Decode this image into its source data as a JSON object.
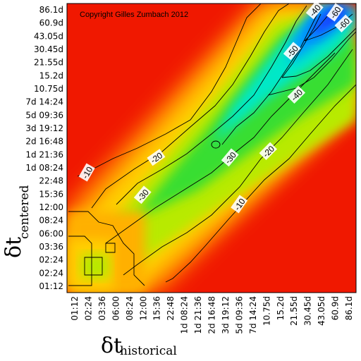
{
  "chart_data": {
    "type": "heatmap",
    "copyright": "Copyright Gilles Zumbach 2012",
    "xlabel_main": "δt",
    "xlabel_sub": "historical",
    "ylabel_main": "δt",
    "ylabel_sub": "centered",
    "x_ticks": [
      "01:12",
      "02:24",
      "03:36",
      "06:00",
      "08:24",
      "12:00",
      "15:36",
      "22:48",
      "1d 08:24",
      "1d 21:36",
      "2d 16:48",
      "3d 19:12",
      "5d 09:36",
      "7d 14:24",
      "10.75d",
      "15.2d",
      "21.55d",
      "30.45d",
      "43.05d",
      "60.9d",
      "86.1d"
    ],
    "y_ticks": [
      "01:12",
      "02:24",
      "02:24",
      "03:36",
      "06:00",
      "08:24",
      "12:00",
      "15:36",
      "22:48",
      "1d 08:24",
      "1d 21:36",
      "2d 16:48",
      "3d 19:12",
      "5d 09:36",
      "7d 14:24",
      "10.75d",
      "15.2d",
      "21.55d",
      "30.45d",
      "43.05d",
      "60.9d",
      "86.1d"
    ],
    "contour_levels": [
      "-10",
      "-10",
      "-20",
      "-20",
      "-30",
      "-30",
      "-40",
      "-40",
      "-50",
      "-60",
      "-60"
    ],
    "colorscale": [
      "#e60000",
      "#ff3000",
      "#ff8800",
      "#ffd000",
      "#b0ea00",
      "#40e000",
      "#00e8c0",
      "#00a8ff",
      "#0030ff"
    ]
  }
}
